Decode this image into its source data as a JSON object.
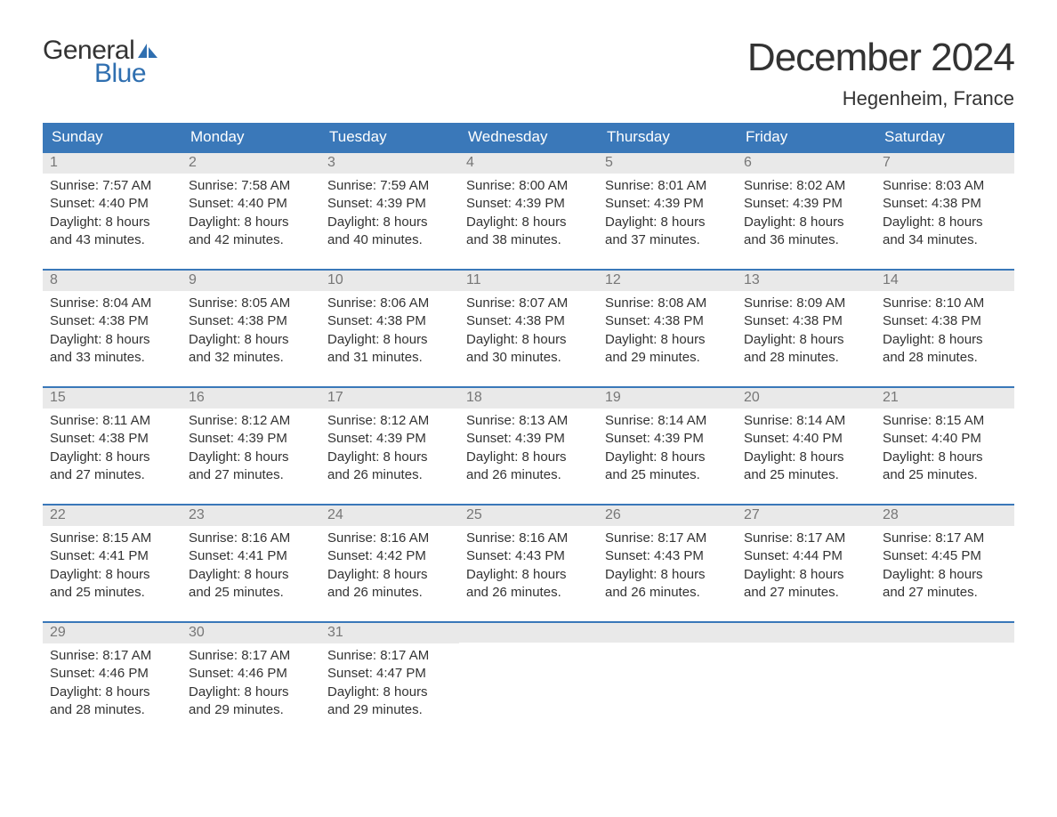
{
  "logo": {
    "general": "General",
    "blue": "Blue",
    "sail_color": "#2f6fb0"
  },
  "title": "December 2024",
  "location": "Hegenheim, France",
  "colors": {
    "header_bg": "#3a78b9",
    "header_text": "#ffffff",
    "daynum_bg": "#e9e9e9",
    "daynum_text": "#777777",
    "body_text": "#333333",
    "row_border": "#3a78b9"
  },
  "day_headers": [
    "Sunday",
    "Monday",
    "Tuesday",
    "Wednesday",
    "Thursday",
    "Friday",
    "Saturday"
  ],
  "weeks": [
    [
      {
        "n": "1",
        "sunrise": "Sunrise: 7:57 AM",
        "sunset": "Sunset: 4:40 PM",
        "d1": "Daylight: 8 hours",
        "d2": "and 43 minutes."
      },
      {
        "n": "2",
        "sunrise": "Sunrise: 7:58 AM",
        "sunset": "Sunset: 4:40 PM",
        "d1": "Daylight: 8 hours",
        "d2": "and 42 minutes."
      },
      {
        "n": "3",
        "sunrise": "Sunrise: 7:59 AM",
        "sunset": "Sunset: 4:39 PM",
        "d1": "Daylight: 8 hours",
        "d2": "and 40 minutes."
      },
      {
        "n": "4",
        "sunrise": "Sunrise: 8:00 AM",
        "sunset": "Sunset: 4:39 PM",
        "d1": "Daylight: 8 hours",
        "d2": "and 38 minutes."
      },
      {
        "n": "5",
        "sunrise": "Sunrise: 8:01 AM",
        "sunset": "Sunset: 4:39 PM",
        "d1": "Daylight: 8 hours",
        "d2": "and 37 minutes."
      },
      {
        "n": "6",
        "sunrise": "Sunrise: 8:02 AM",
        "sunset": "Sunset: 4:39 PM",
        "d1": "Daylight: 8 hours",
        "d2": "and 36 minutes."
      },
      {
        "n": "7",
        "sunrise": "Sunrise: 8:03 AM",
        "sunset": "Sunset: 4:38 PM",
        "d1": "Daylight: 8 hours",
        "d2": "and 34 minutes."
      }
    ],
    [
      {
        "n": "8",
        "sunrise": "Sunrise: 8:04 AM",
        "sunset": "Sunset: 4:38 PM",
        "d1": "Daylight: 8 hours",
        "d2": "and 33 minutes."
      },
      {
        "n": "9",
        "sunrise": "Sunrise: 8:05 AM",
        "sunset": "Sunset: 4:38 PM",
        "d1": "Daylight: 8 hours",
        "d2": "and 32 minutes."
      },
      {
        "n": "10",
        "sunrise": "Sunrise: 8:06 AM",
        "sunset": "Sunset: 4:38 PM",
        "d1": "Daylight: 8 hours",
        "d2": "and 31 minutes."
      },
      {
        "n": "11",
        "sunrise": "Sunrise: 8:07 AM",
        "sunset": "Sunset: 4:38 PM",
        "d1": "Daylight: 8 hours",
        "d2": "and 30 minutes."
      },
      {
        "n": "12",
        "sunrise": "Sunrise: 8:08 AM",
        "sunset": "Sunset: 4:38 PM",
        "d1": "Daylight: 8 hours",
        "d2": "and 29 minutes."
      },
      {
        "n": "13",
        "sunrise": "Sunrise: 8:09 AM",
        "sunset": "Sunset: 4:38 PM",
        "d1": "Daylight: 8 hours",
        "d2": "and 28 minutes."
      },
      {
        "n": "14",
        "sunrise": "Sunrise: 8:10 AM",
        "sunset": "Sunset: 4:38 PM",
        "d1": "Daylight: 8 hours",
        "d2": "and 28 minutes."
      }
    ],
    [
      {
        "n": "15",
        "sunrise": "Sunrise: 8:11 AM",
        "sunset": "Sunset: 4:38 PM",
        "d1": "Daylight: 8 hours",
        "d2": "and 27 minutes."
      },
      {
        "n": "16",
        "sunrise": "Sunrise: 8:12 AM",
        "sunset": "Sunset: 4:39 PM",
        "d1": "Daylight: 8 hours",
        "d2": "and 27 minutes."
      },
      {
        "n": "17",
        "sunrise": "Sunrise: 8:12 AM",
        "sunset": "Sunset: 4:39 PM",
        "d1": "Daylight: 8 hours",
        "d2": "and 26 minutes."
      },
      {
        "n": "18",
        "sunrise": "Sunrise: 8:13 AM",
        "sunset": "Sunset: 4:39 PM",
        "d1": "Daylight: 8 hours",
        "d2": "and 26 minutes."
      },
      {
        "n": "19",
        "sunrise": "Sunrise: 8:14 AM",
        "sunset": "Sunset: 4:39 PM",
        "d1": "Daylight: 8 hours",
        "d2": "and 25 minutes."
      },
      {
        "n": "20",
        "sunrise": "Sunrise: 8:14 AM",
        "sunset": "Sunset: 4:40 PM",
        "d1": "Daylight: 8 hours",
        "d2": "and 25 minutes."
      },
      {
        "n": "21",
        "sunrise": "Sunrise: 8:15 AM",
        "sunset": "Sunset: 4:40 PM",
        "d1": "Daylight: 8 hours",
        "d2": "and 25 minutes."
      }
    ],
    [
      {
        "n": "22",
        "sunrise": "Sunrise: 8:15 AM",
        "sunset": "Sunset: 4:41 PM",
        "d1": "Daylight: 8 hours",
        "d2": "and 25 minutes."
      },
      {
        "n": "23",
        "sunrise": "Sunrise: 8:16 AM",
        "sunset": "Sunset: 4:41 PM",
        "d1": "Daylight: 8 hours",
        "d2": "and 25 minutes."
      },
      {
        "n": "24",
        "sunrise": "Sunrise: 8:16 AM",
        "sunset": "Sunset: 4:42 PM",
        "d1": "Daylight: 8 hours",
        "d2": "and 26 minutes."
      },
      {
        "n": "25",
        "sunrise": "Sunrise: 8:16 AM",
        "sunset": "Sunset: 4:43 PM",
        "d1": "Daylight: 8 hours",
        "d2": "and 26 minutes."
      },
      {
        "n": "26",
        "sunrise": "Sunrise: 8:17 AM",
        "sunset": "Sunset: 4:43 PM",
        "d1": "Daylight: 8 hours",
        "d2": "and 26 minutes."
      },
      {
        "n": "27",
        "sunrise": "Sunrise: 8:17 AM",
        "sunset": "Sunset: 4:44 PM",
        "d1": "Daylight: 8 hours",
        "d2": "and 27 minutes."
      },
      {
        "n": "28",
        "sunrise": "Sunrise: 8:17 AM",
        "sunset": "Sunset: 4:45 PM",
        "d1": "Daylight: 8 hours",
        "d2": "and 27 minutes."
      }
    ],
    [
      {
        "n": "29",
        "sunrise": "Sunrise: 8:17 AM",
        "sunset": "Sunset: 4:46 PM",
        "d1": "Daylight: 8 hours",
        "d2": "and 28 minutes."
      },
      {
        "n": "30",
        "sunrise": "Sunrise: 8:17 AM",
        "sunset": "Sunset: 4:46 PM",
        "d1": "Daylight: 8 hours",
        "d2": "and 29 minutes."
      },
      {
        "n": "31",
        "sunrise": "Sunrise: 8:17 AM",
        "sunset": "Sunset: 4:47 PM",
        "d1": "Daylight: 8 hours",
        "d2": "and 29 minutes."
      },
      null,
      null,
      null,
      null
    ]
  ]
}
